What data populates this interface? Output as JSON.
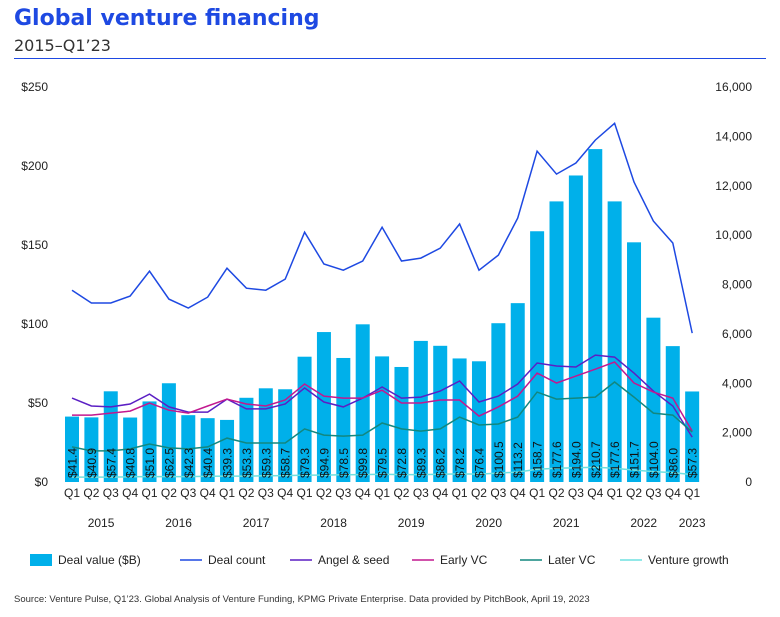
{
  "title": "Global venture financing",
  "subtitle": "2015–Q1’23",
  "source": "Source: Venture Pulse, Q1’23. Global Analysis of Venture Funding, KPMG Private Enterprise. Data provided by PitchBook, April 19, 2023",
  "chart_data": {
    "type": "bar",
    "title": "Global venture financing",
    "categories": [
      "Q1",
      "Q2",
      "Q3",
      "Q4",
      "Q1",
      "Q2",
      "Q3",
      "Q4",
      "Q1",
      "Q2",
      "Q3",
      "Q4",
      "Q1",
      "Q2",
      "Q3",
      "Q4",
      "Q1",
      "Q2",
      "Q3",
      "Q4",
      "Q1",
      "Q2",
      "Q3",
      "Q4",
      "Q1",
      "Q2",
      "Q3",
      "Q4",
      "Q1",
      "Q2",
      "Q3",
      "Q4",
      "Q1"
    ],
    "years": [
      {
        "label": "2015",
        "from": 0,
        "to": 3
      },
      {
        "label": "2016",
        "from": 4,
        "to": 7
      },
      {
        "label": "2017",
        "from": 8,
        "to": 11
      },
      {
        "label": "2018",
        "from": 12,
        "to": 15
      },
      {
        "label": "2019",
        "from": 16,
        "to": 19
      },
      {
        "label": "2020",
        "from": 20,
        "to": 23
      },
      {
        "label": "2021",
        "from": 24,
        "to": 27
      },
      {
        "label": "2022",
        "from": 28,
        "to": 31
      },
      {
        "label": "2023",
        "from": 32,
        "to": 32
      }
    ],
    "left_axis": {
      "ylim": [
        0,
        250
      ],
      "ticks": [
        "$0",
        "$50",
        "$100",
        "$150",
        "$200",
        "$250"
      ]
    },
    "right_axis": {
      "ylim": [
        0,
        16000
      ],
      "ticks": [
        "0",
        "2,000",
        "4,000",
        "6,000",
        "8,000",
        "10,000",
        "12,000",
        "14,000",
        "16,000"
      ]
    },
    "series": [
      {
        "name": "Deal value ($B)",
        "type": "bar",
        "axis": "left",
        "color": "#00b0ea",
        "values": [
          41.4,
          40.9,
          57.4,
          40.8,
          51.0,
          62.5,
          42.3,
          40.4,
          39.3,
          53.3,
          59.3,
          58.7,
          79.3,
          94.9,
          78.5,
          99.8,
          79.5,
          72.8,
          89.3,
          86.2,
          78.2,
          76.4,
          100.5,
          113.2,
          158.7,
          177.6,
          194.0,
          210.7,
          177.6,
          151.7,
          104.0,
          86.0,
          57.3
        ],
        "labels": [
          "$41.4",
          "$40.9",
          "$57.4",
          "$40.8",
          "$51.0",
          "$62.5",
          "$42.3",
          "$40.4",
          "$39.3",
          "$53.3",
          "$59.3",
          "$58.7",
          "$79.3",
          "$94.9",
          "$78.5",
          "$99.8",
          "$79.5",
          "$72.8",
          "$89.3",
          "$86.2",
          "$78.2",
          "$76.4",
          "$100.5",
          "$113.2",
          "$158.7",
          "$177.6",
          "$194.0",
          "$210.7",
          "$177.6",
          "$151.7",
          "$104.0",
          "$86.0",
          "$57.3"
        ]
      },
      {
        "name": "Deal count",
        "type": "line",
        "axis": "right",
        "color": "#1e49e2",
        "values": [
          7770,
          7250,
          7250,
          7530,
          8540,
          7410,
          7050,
          7490,
          8660,
          7850,
          7770,
          8220,
          10120,
          8830,
          8580,
          8950,
          10320,
          8950,
          9070,
          9470,
          10450,
          8580,
          9190,
          10690,
          13400,
          12470,
          12920,
          13850,
          14530,
          12150,
          10570,
          9680,
          6030
        ]
      },
      {
        "name": "Angel & seed",
        "type": "line",
        "axis": "right",
        "color": "#5b1fc4",
        "values": [
          3400,
          3080,
          3040,
          3160,
          3560,
          3040,
          2830,
          2830,
          3360,
          2960,
          2960,
          3160,
          3810,
          3240,
          3040,
          3400,
          3850,
          3400,
          3440,
          3680,
          4090,
          3240,
          3480,
          3970,
          4820,
          4700,
          4660,
          5140,
          5060,
          4410,
          3680,
          3080,
          1820
        ]
      },
      {
        "name": "Early VC",
        "type": "line",
        "axis": "right",
        "color": "#c2188f",
        "values": [
          2710,
          2710,
          2790,
          2870,
          3200,
          2910,
          2790,
          3080,
          3360,
          3160,
          3080,
          3320,
          3970,
          3480,
          3400,
          3400,
          3720,
          3200,
          3200,
          3320,
          3320,
          2670,
          3040,
          3480,
          4410,
          4010,
          4290,
          4570,
          4860,
          4010,
          3640,
          3400,
          2060
        ]
      },
      {
        "name": "Later VC",
        "type": "line",
        "axis": "right",
        "color": "#12877f",
        "values": [
          1420,
          1260,
          1260,
          1340,
          1540,
          1380,
          1340,
          1420,
          1780,
          1580,
          1580,
          1580,
          2150,
          1900,
          1860,
          1900,
          2390,
          2150,
          2060,
          2150,
          2630,
          2310,
          2350,
          2630,
          3640,
          3360,
          3400,
          3440,
          4050,
          3440,
          2790,
          2710,
          2020
        ]
      },
      {
        "name": "Venture growth",
        "type": "line",
        "axis": "right",
        "color": "#6ee0e0",
        "values": [
          200,
          200,
          200,
          210,
          220,
          220,
          220,
          230,
          240,
          240,
          250,
          260,
          280,
          280,
          290,
          300,
          310,
          300,
          300,
          310,
          330,
          320,
          360,
          400,
          520,
          560,
          580,
          600,
          560,
          480,
          420,
          380,
          300
        ]
      }
    ],
    "legend_position": "bottom"
  }
}
